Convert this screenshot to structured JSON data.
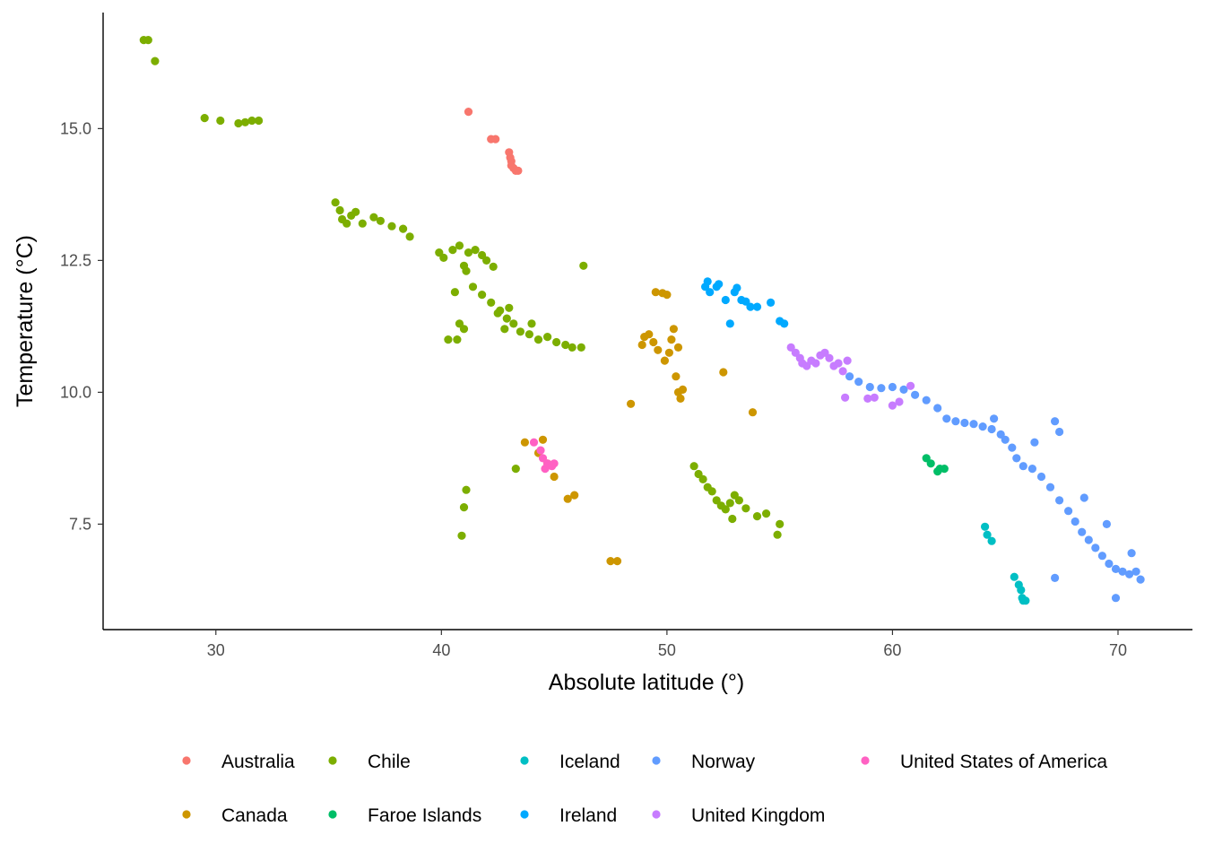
{
  "chart_data": {
    "type": "scatter",
    "title": "",
    "xlabel": "Absolute latitude (°)",
    "ylabel": "Temperature (°C)",
    "xlim": [
      25,
      73.3
    ],
    "ylim": [
      5.5,
      17.2
    ],
    "xticks": [
      30,
      40,
      50,
      60,
      70
    ],
    "yticks": [
      7.5,
      10.0,
      12.5,
      15.0
    ],
    "yticks_labels": [
      "7.5",
      "10.0",
      "12.5",
      "15.0"
    ],
    "grid": false,
    "legend_position": "bottom",
    "series": [
      {
        "name": "Australia",
        "color": "#F8766D",
        "points": [
          [
            41.2,
            15.32
          ],
          [
            42.2,
            14.8
          ],
          [
            42.4,
            14.8
          ],
          [
            43.0,
            14.55
          ],
          [
            43.05,
            14.45
          ],
          [
            43.1,
            14.38
          ],
          [
            43.1,
            14.3
          ],
          [
            43.2,
            14.25
          ],
          [
            43.3,
            14.2
          ],
          [
            43.4,
            14.2
          ]
        ]
      },
      {
        "name": "Canada",
        "color": "#CD9600",
        "points": [
          [
            43.7,
            9.05
          ],
          [
            44.3,
            8.85
          ],
          [
            44.5,
            9.1
          ],
          [
            44.7,
            8.65
          ],
          [
            45.0,
            8.4
          ],
          [
            45.6,
            7.98
          ],
          [
            45.9,
            8.05
          ],
          [
            47.5,
            6.8
          ],
          [
            47.8,
            6.8
          ],
          [
            48.4,
            9.78
          ],
          [
            48.9,
            10.9
          ],
          [
            49.0,
            11.05
          ],
          [
            49.2,
            11.1
          ],
          [
            49.4,
            10.95
          ],
          [
            49.6,
            10.8
          ],
          [
            49.5,
            11.9
          ],
          [
            49.8,
            11.88
          ],
          [
            50.0,
            11.85
          ],
          [
            49.9,
            10.6
          ],
          [
            50.1,
            10.75
          ],
          [
            50.3,
            11.2
          ],
          [
            50.2,
            11.0
          ],
          [
            50.5,
            10.85
          ],
          [
            50.4,
            10.3
          ],
          [
            50.5,
            10.0
          ],
          [
            50.6,
            9.88
          ],
          [
            50.7,
            10.05
          ],
          [
            52.5,
            10.38
          ],
          [
            53.8,
            9.62
          ]
        ]
      },
      {
        "name": "Chile",
        "color": "#7CAE00",
        "points": [
          [
            26.8,
            16.68
          ],
          [
            27.0,
            16.68
          ],
          [
            27.3,
            16.28
          ],
          [
            29.5,
            15.2
          ],
          [
            30.2,
            15.15
          ],
          [
            31.0,
            15.1
          ],
          [
            31.3,
            15.12
          ],
          [
            31.6,
            15.15
          ],
          [
            31.9,
            15.15
          ],
          [
            35.3,
            13.6
          ],
          [
            35.5,
            13.45
          ],
          [
            35.6,
            13.28
          ],
          [
            35.8,
            13.2
          ],
          [
            36.0,
            13.35
          ],
          [
            36.2,
            13.42
          ],
          [
            36.5,
            13.2
          ],
          [
            37.0,
            13.32
          ],
          [
            37.3,
            13.25
          ],
          [
            37.8,
            13.15
          ],
          [
            38.3,
            13.1
          ],
          [
            38.6,
            12.95
          ],
          [
            39.9,
            12.65
          ],
          [
            40.1,
            12.55
          ],
          [
            40.5,
            12.7
          ],
          [
            40.8,
            12.78
          ],
          [
            41.2,
            12.65
          ],
          [
            41.5,
            12.7
          ],
          [
            41.8,
            12.6
          ],
          [
            42.0,
            12.5
          ],
          [
            42.3,
            12.38
          ],
          [
            41.0,
            12.4
          ],
          [
            41.1,
            12.3
          ],
          [
            40.6,
            11.9
          ],
          [
            40.8,
            11.3
          ],
          [
            41.0,
            11.2
          ],
          [
            40.3,
            11.0
          ],
          [
            40.7,
            11.0
          ],
          [
            41.4,
            12.0
          ],
          [
            41.8,
            11.85
          ],
          [
            42.2,
            11.7
          ],
          [
            42.6,
            11.55
          ],
          [
            42.9,
            11.4
          ],
          [
            43.2,
            11.3
          ],
          [
            43.5,
            11.15
          ],
          [
            43.9,
            11.1
          ],
          [
            44.3,
            11.0
          ],
          [
            44.7,
            11.05
          ],
          [
            45.1,
            10.95
          ],
          [
            45.5,
            10.9
          ],
          [
            45.8,
            10.85
          ],
          [
            46.2,
            10.85
          ],
          [
            42.5,
            11.5
          ],
          [
            42.8,
            11.2
          ],
          [
            43.0,
            11.6
          ],
          [
            44.0,
            11.3
          ],
          [
            46.3,
            12.4
          ],
          [
            43.3,
            8.55
          ],
          [
            41.1,
            8.15
          ],
          [
            41.0,
            7.82
          ],
          [
            40.9,
            7.28
          ],
          [
            51.2,
            8.6
          ],
          [
            51.4,
            8.45
          ],
          [
            51.6,
            8.35
          ],
          [
            51.8,
            8.2
          ],
          [
            52.0,
            8.12
          ],
          [
            52.2,
            7.95
          ],
          [
            52.4,
            7.85
          ],
          [
            52.6,
            7.78
          ],
          [
            52.8,
            7.9
          ],
          [
            53.0,
            8.05
          ],
          [
            53.2,
            7.95
          ],
          [
            52.9,
            7.6
          ],
          [
            53.5,
            7.8
          ],
          [
            54.0,
            7.65
          ],
          [
            54.4,
            7.7
          ],
          [
            55.0,
            7.5
          ],
          [
            54.9,
            7.3
          ]
        ]
      },
      {
        "name": "Faroe Islands",
        "color": "#00BE67",
        "points": [
          [
            61.5,
            8.75
          ],
          [
            61.7,
            8.65
          ],
          [
            62.0,
            8.5
          ],
          [
            62.1,
            8.55
          ],
          [
            62.3,
            8.55
          ]
        ]
      },
      {
        "name": "Iceland",
        "color": "#00BFC4",
        "points": [
          [
            64.1,
            7.45
          ],
          [
            64.2,
            7.3
          ],
          [
            64.4,
            7.18
          ],
          [
            65.4,
            6.5
          ],
          [
            65.6,
            6.35
          ],
          [
            65.7,
            6.25
          ],
          [
            65.75,
            6.1
          ],
          [
            65.8,
            6.05
          ],
          [
            65.9,
            6.05
          ]
        ]
      },
      {
        "name": "Ireland",
        "color": "#00A9FF",
        "points": [
          [
            51.7,
            12.0
          ],
          [
            51.8,
            12.1
          ],
          [
            51.9,
            11.9
          ],
          [
            52.2,
            12.0
          ],
          [
            52.3,
            12.05
          ],
          [
            52.6,
            11.75
          ],
          [
            53.0,
            11.9
          ],
          [
            53.1,
            11.98
          ],
          [
            53.3,
            11.75
          ],
          [
            53.5,
            11.72
          ],
          [
            53.7,
            11.62
          ],
          [
            54.0,
            11.62
          ],
          [
            54.6,
            11.7
          ],
          [
            55.0,
            11.35
          ],
          [
            55.2,
            11.3
          ],
          [
            52.8,
            11.3
          ]
        ]
      },
      {
        "name": "Norway",
        "color": "#619CFF",
        "points": [
          [
            58.1,
            10.3
          ],
          [
            58.5,
            10.2
          ],
          [
            59.0,
            10.1
          ],
          [
            59.5,
            10.08
          ],
          [
            60.0,
            10.1
          ],
          [
            60.5,
            10.05
          ],
          [
            61.0,
            9.95
          ],
          [
            61.5,
            9.85
          ],
          [
            62.0,
            9.7
          ],
          [
            62.4,
            9.5
          ],
          [
            62.8,
            9.45
          ],
          [
            63.2,
            9.42
          ],
          [
            63.6,
            9.4
          ],
          [
            64.0,
            9.35
          ],
          [
            64.4,
            9.3
          ],
          [
            64.8,
            9.2
          ],
          [
            65.0,
            9.1
          ],
          [
            65.3,
            8.95
          ],
          [
            65.5,
            8.75
          ],
          [
            65.8,
            8.6
          ],
          [
            66.2,
            8.55
          ],
          [
            66.6,
            8.4
          ],
          [
            67.0,
            8.2
          ],
          [
            67.4,
            7.95
          ],
          [
            67.8,
            7.75
          ],
          [
            68.1,
            7.55
          ],
          [
            68.4,
            7.35
          ],
          [
            68.7,
            7.2
          ],
          [
            69.0,
            7.05
          ],
          [
            69.3,
            6.9
          ],
          [
            69.6,
            6.75
          ],
          [
            69.9,
            6.65
          ],
          [
            70.2,
            6.6
          ],
          [
            70.5,
            6.55
          ],
          [
            70.8,
            6.6
          ],
          [
            71.0,
            6.45
          ],
          [
            70.6,
            6.95
          ],
          [
            69.9,
            6.1
          ],
          [
            69.5,
            7.5
          ],
          [
            68.5,
            8.0
          ],
          [
            67.2,
            9.45
          ],
          [
            67.4,
            9.25
          ],
          [
            66.3,
            9.05
          ],
          [
            67.2,
            6.48
          ],
          [
            64.5,
            9.5
          ]
        ]
      },
      {
        "name": "United Kingdom",
        "color": "#C77CFF",
        "points": [
          [
            55.5,
            10.85
          ],
          [
            55.7,
            10.75
          ],
          [
            55.9,
            10.65
          ],
          [
            56.0,
            10.55
          ],
          [
            56.2,
            10.5
          ],
          [
            56.4,
            10.6
          ],
          [
            56.6,
            10.55
          ],
          [
            56.8,
            10.7
          ],
          [
            57.0,
            10.75
          ],
          [
            57.2,
            10.65
          ],
          [
            57.4,
            10.5
          ],
          [
            57.6,
            10.55
          ],
          [
            57.8,
            10.4
          ],
          [
            58.0,
            10.6
          ],
          [
            58.9,
            9.88
          ],
          [
            59.2,
            9.9
          ],
          [
            60.0,
            9.75
          ],
          [
            60.3,
            9.82
          ],
          [
            60.8,
            10.12
          ],
          [
            57.9,
            9.9
          ]
        ]
      },
      {
        "name": "United States of America",
        "color": "#FF61C3",
        "points": [
          [
            44.1,
            9.05
          ],
          [
            44.4,
            8.9
          ],
          [
            44.5,
            8.75
          ],
          [
            44.6,
            8.55
          ],
          [
            44.7,
            8.65
          ],
          [
            44.9,
            8.6
          ],
          [
            45.0,
            8.65
          ]
        ]
      }
    ]
  }
}
